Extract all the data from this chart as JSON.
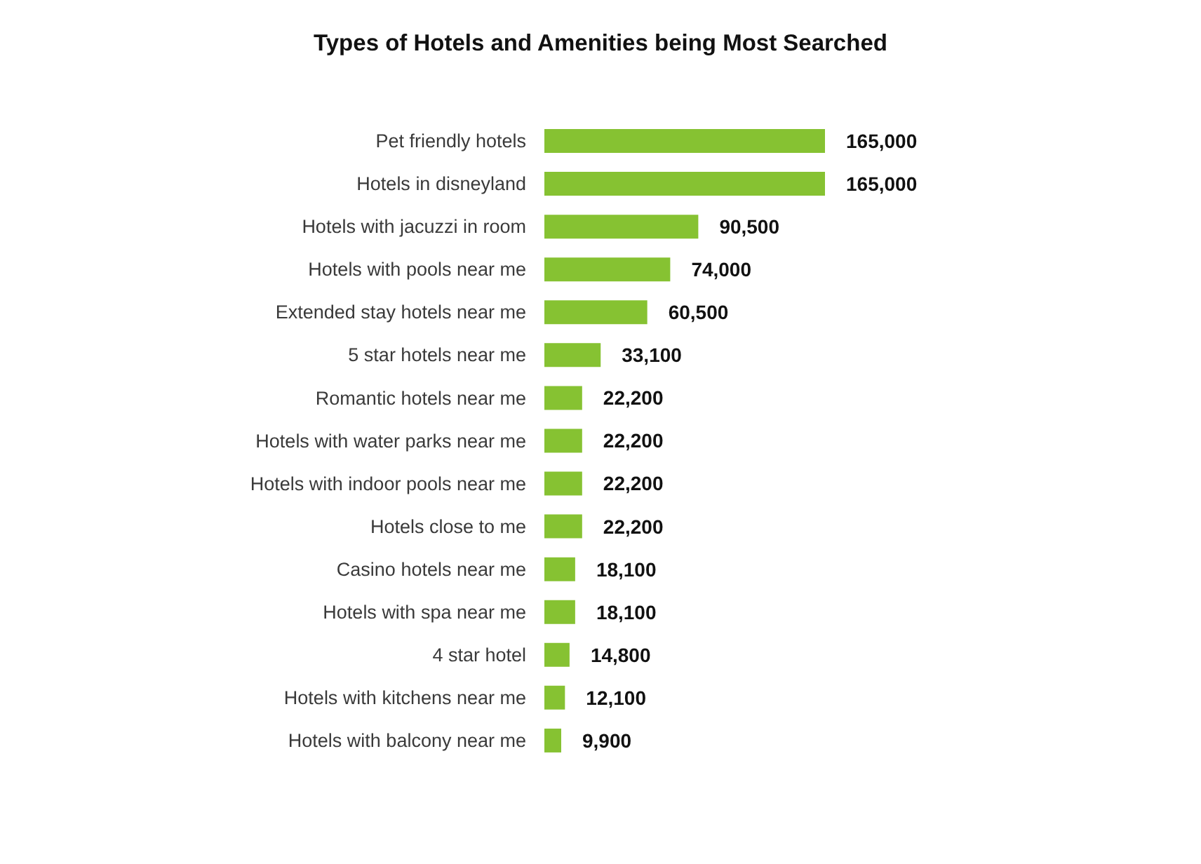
{
  "chart_data": {
    "type": "bar",
    "title": "Types of Hotels and Amenities being Most Searched",
    "orientation": "horizontal",
    "categories": [
      "Pet friendly hotels",
      "Hotels in disneyland",
      "Hotels with jacuzzi in room",
      "Hotels with pools near me",
      "Extended stay hotels near me",
      "5 star hotels near me",
      "Romantic hotels near me",
      "Hotels with water parks near me",
      "Hotels with indoor pools near me",
      "Hotels close to me",
      "Casino hotels near me",
      "Hotels with spa near me",
      "4 star hotel",
      "Hotels with kitchens near me",
      "Hotels with balcony near me"
    ],
    "values": [
      165000,
      165000,
      90500,
      74000,
      60500,
      33100,
      22200,
      22200,
      22200,
      22200,
      18100,
      18100,
      14800,
      12100,
      9900
    ],
    "value_labels": [
      "165,000",
      "165,000",
      "90,500",
      "74,000",
      "60,500",
      "33,100",
      "22,200",
      "22,200",
      "22,200",
      "22,200",
      "18,100",
      "18,100",
      "14,800",
      "12,100",
      "9,900"
    ],
    "color": "#86c232",
    "tick_labels": "y"
  }
}
